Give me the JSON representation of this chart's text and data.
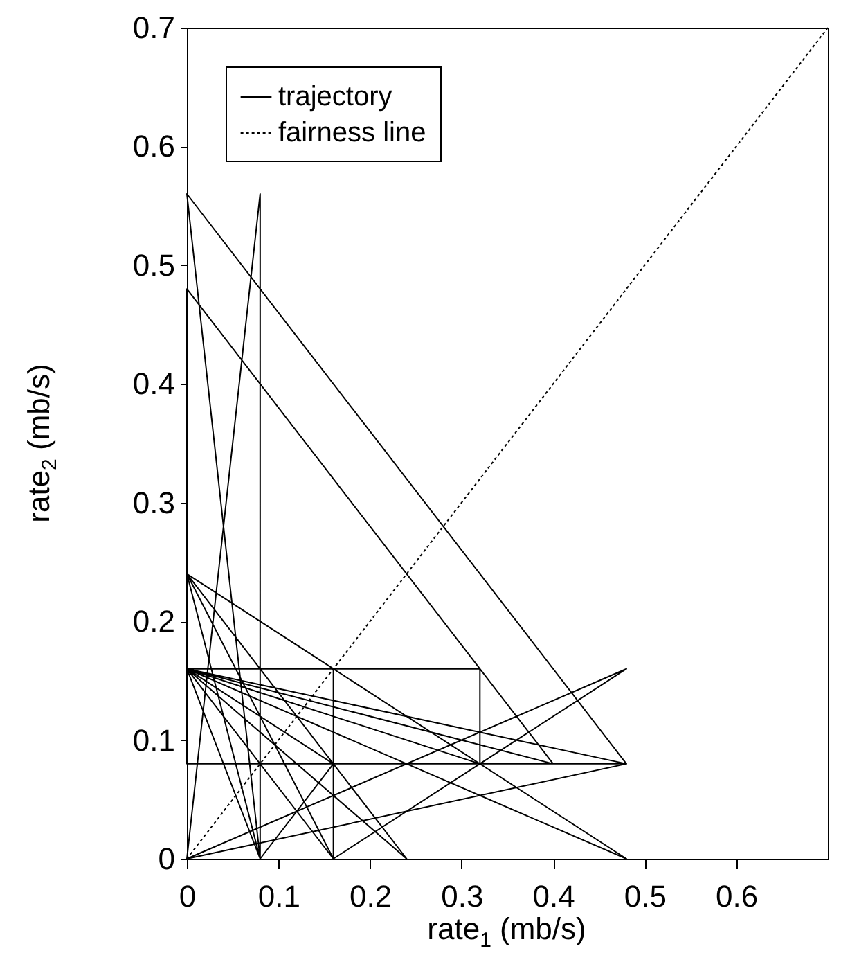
{
  "chart_data": {
    "type": "line",
    "xlabel": "rate$_{1}$ (mb/s)",
    "ylabel": "rate$_{2}$ (mb/s)",
    "xlim": [
      0,
      0.7
    ],
    "ylim": [
      0,
      0.7
    ],
    "xticks": [
      0,
      0.1,
      0.2,
      0.3,
      0.4,
      0.5,
      0.6
    ],
    "yticks": [
      0,
      0.1,
      0.2,
      0.3,
      0.4,
      0.5,
      0.6,
      0.7
    ],
    "grid": false,
    "legend": "top left",
    "marker": "none",
    "series": [
      {
        "name": "trajectory",
        "color": "#000000",
        "line_style": "solid",
        "x": [
          0,
          0.08,
          0.08,
          0,
          0.48,
          0,
          0,
          0.4,
          0,
          0.48,
          0,
          0.16,
          0.16,
          0,
          0.32,
          0.32,
          0,
          0.24,
          0,
          0.48,
          0,
          0.08,
          0,
          0.16,
          0.48,
          0,
          0.48,
          0,
          0.16,
          0.08,
          0
        ],
        "values": [
          0,
          0.56,
          0,
          0.56,
          0.08,
          0.08,
          0.48,
          0.08,
          0.16,
          0,
          0.24,
          0.16,
          0,
          0.16,
          0.16,
          0.08,
          0.16,
          0,
          0.24,
          0,
          0.16,
          0,
          0.24,
          0,
          0.16,
          0,
          0.08,
          0.16,
          0.08,
          0,
          0.16
        ]
      },
      {
        "name": "fairness line",
        "color": "#000000",
        "line_style": "dotted",
        "x": [
          0,
          0.7
        ],
        "values": [
          0,
          0.7
        ]
      }
    ]
  }
}
